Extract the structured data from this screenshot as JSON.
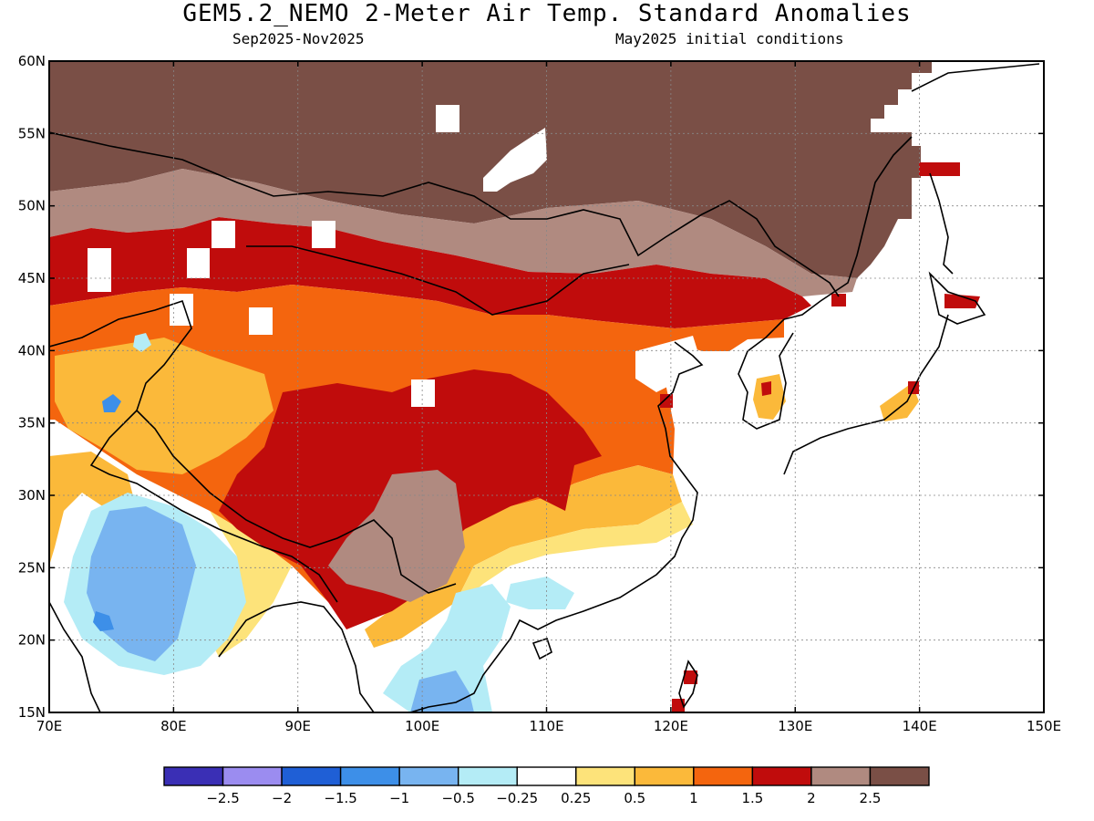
{
  "title": "GEM5.2_NEMO 2-Meter Air Temp. Standard Anomalies",
  "subtitle_left": "Sep2025-Nov2025",
  "subtitle_right": "May2025 initial conditions",
  "axes": {
    "lon_range": [
      70,
      150
    ],
    "lat_range": [
      15,
      60
    ],
    "lon_ticks": [
      "70E",
      "80E",
      "90E",
      "100E",
      "110E",
      "120E",
      "130E",
      "140E",
      "150E"
    ],
    "lat_ticks": [
      "15N",
      "20N",
      "25N",
      "30N",
      "35N",
      "40N",
      "45N",
      "50N",
      "55N",
      "60N"
    ]
  },
  "colors": {
    "lt_-2.5": "#3a2fb5",
    "-2.5_-2": "#9b8cf0",
    "-2_-1.5": "#1f5fd6",
    "-1.5_-1": "#3d8fe8",
    "-1_-0.5": "#78b4f0",
    "-0.5_-0.25": "#b4ecf6",
    "-0.25_0.25": "#ffffff",
    "0.25_0.5": "#fde37a",
    "0.5_1": "#fbb93a",
    "1_1.5": "#f4650e",
    "1.5_2": "#c00c0c",
    "2_2.5": "#b08a80",
    "gt_2.5": "#7a4f46"
  },
  "colorbar": {
    "labels": [
      "-2.5",
      "-2",
      "-1.5",
      "-1",
      "-0.5",
      "-0.25",
      "0.25",
      "0.5",
      "1",
      "1.5",
      "2",
      "2.5"
    ],
    "colors": [
      "#3a2fb5",
      "#9b8cf0",
      "#1f5fd6",
      "#3d8fe8",
      "#78b4f0",
      "#b4ecf6",
      "#ffffff",
      "#fde37a",
      "#fbb93a",
      "#f4650e",
      "#c00c0c",
      "#b08a80",
      "#7a4f46"
    ]
  }
}
